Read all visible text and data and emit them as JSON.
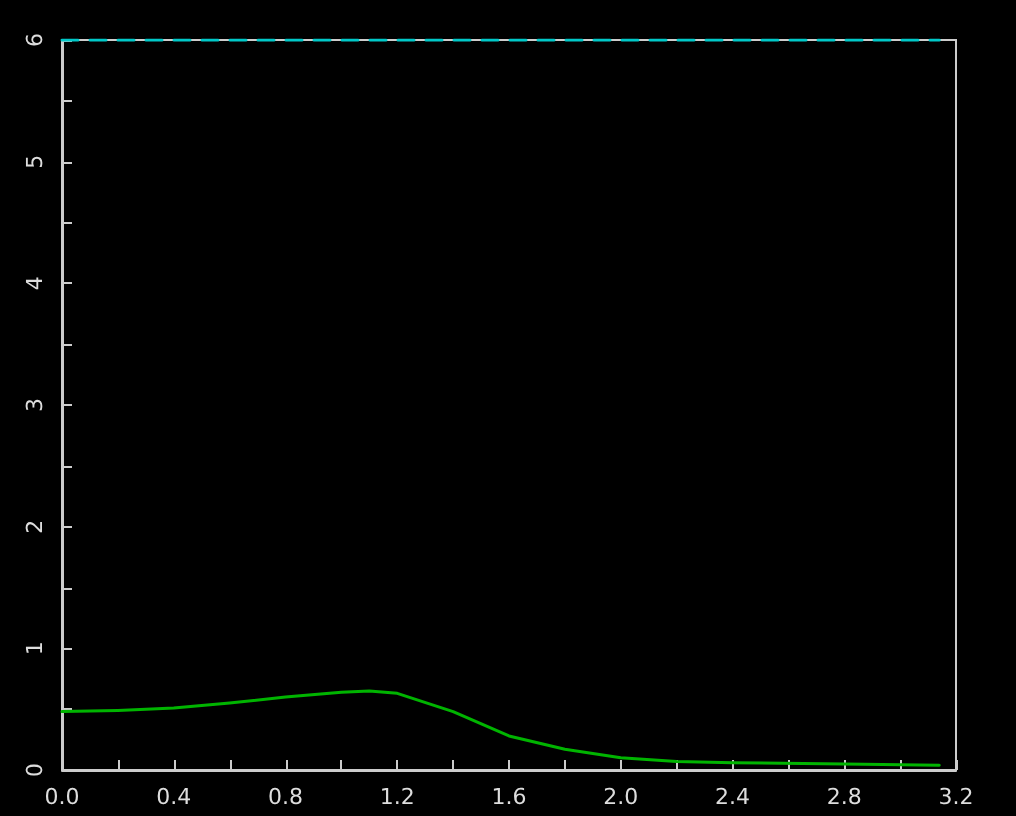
{
  "chart_data": {
    "type": "line",
    "marker": "none",
    "series": [
      {
        "color": "#00b400",
        "line_style": "solid",
        "x": [
          0,
          0.2,
          0.4,
          0.6,
          0.8,
          1.0,
          1.1,
          1.2,
          1.4,
          1.6,
          1.8,
          2.0,
          2.2,
          2.4,
          2.8,
          3.14
        ],
        "values": [
          0.48,
          0.49,
          0.51,
          0.55,
          0.6,
          0.64,
          0.65,
          0.63,
          0.48,
          0.28,
          0.17,
          0.1,
          0.07,
          0.06,
          0.05,
          0.04
        ]
      },
      {
        "color": "#00c8c8",
        "line_style": "dashed",
        "x": [
          0,
          3.14
        ],
        "values": [
          6,
          6
        ]
      }
    ],
    "xlim": [
      0,
      3.2
    ],
    "xticks": [
      {
        "value": 0,
        "label": "0.0"
      },
      {
        "value": 0.2,
        "label": null
      },
      0.4,
      {
        "value": 0.6,
        "label": null
      },
      0.8,
      {
        "value": 1.0,
        "label": null
      },
      1.2,
      {
        "value": 1.4,
        "label": null
      },
      1.6,
      {
        "value": 1.8,
        "label": null
      },
      {
        "value": 2,
        "label": "2.0"
      },
      {
        "value": 2.2,
        "label": null
      },
      2.4,
      {
        "value": 2.6,
        "label": null
      },
      2.8,
      {
        "value": 3.0,
        "label": null
      },
      3.2
    ],
    "ylim": [
      0,
      6
    ],
    "yticks": [
      0,
      {
        "value": 0.5,
        "label": null
      },
      1,
      {
        "value": 1.5,
        "label": null
      },
      2,
      {
        "value": 2.5,
        "label": null
      },
      3,
      {
        "value": 3.5,
        "label": null
      },
      4,
      {
        "value": 4.5,
        "label": null
      },
      5,
      {
        "value": 5.5,
        "label": null
      },
      6
    ],
    "grid": false
  }
}
